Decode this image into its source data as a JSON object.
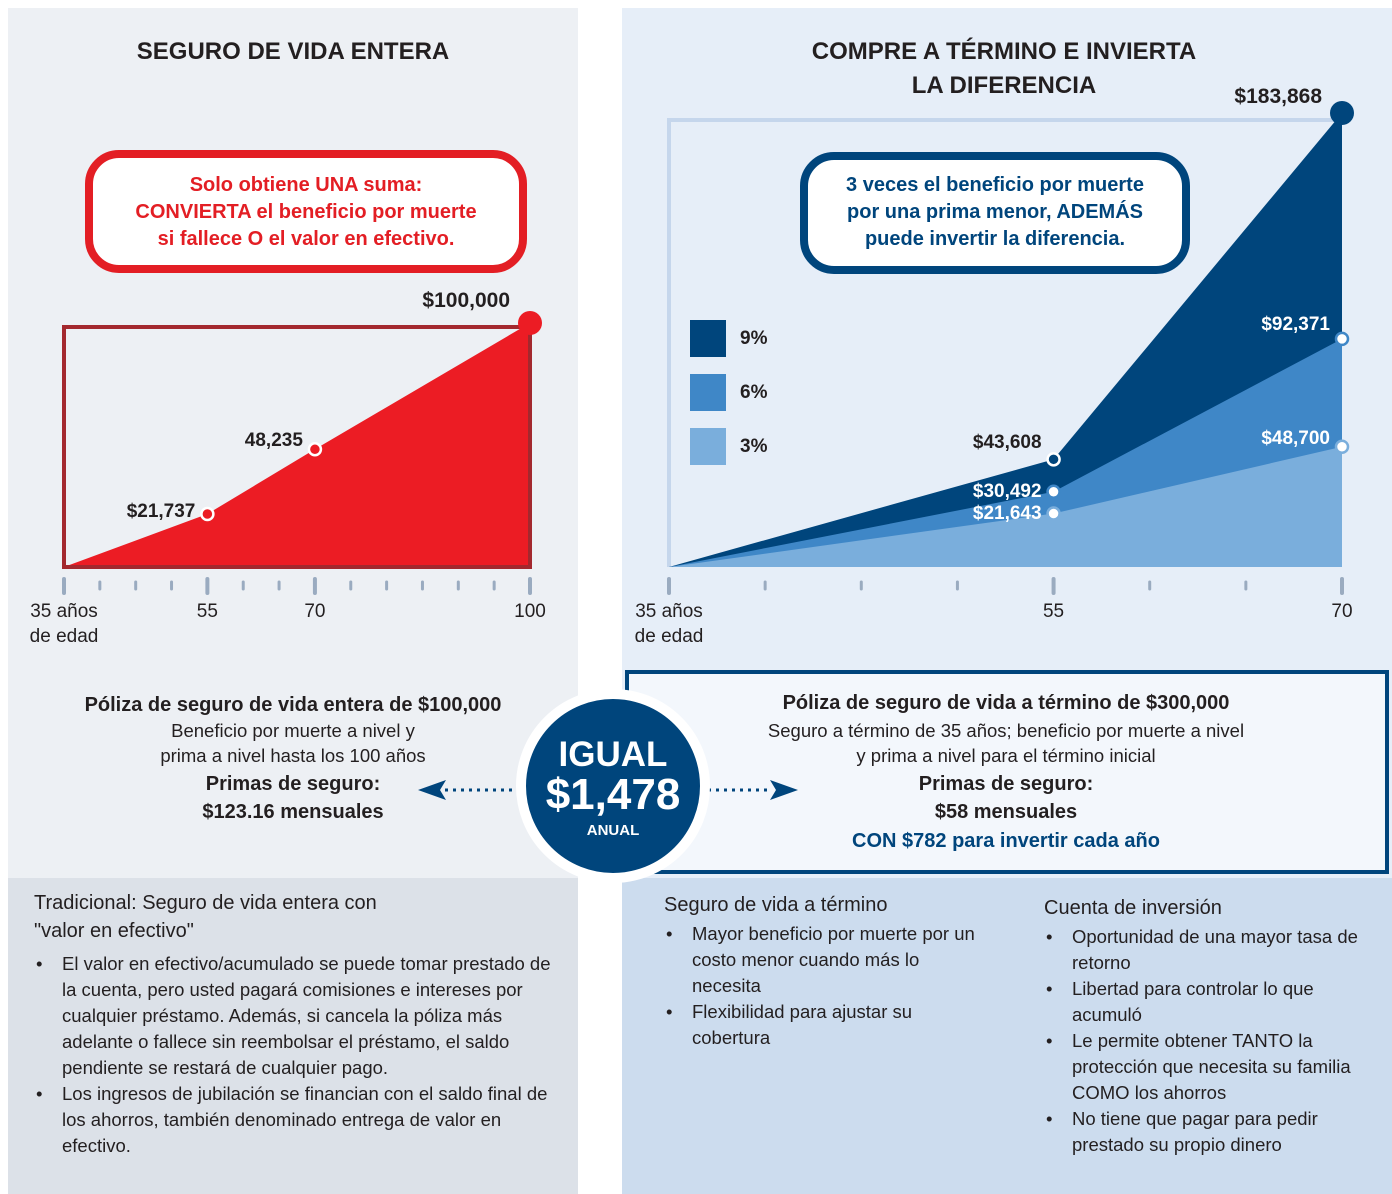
{
  "chart_data": [
    {
      "type": "area",
      "title": "SEGURO DE VIDA ENTERA",
      "annotation": [
        "Solo obtiene UNA suma:",
        "CONVIERTA el beneficio por muerte",
        "si fallece O el valor en efectivo."
      ],
      "x": [
        35,
        55,
        70,
        100
      ],
      "color": "#ec1c24",
      "values": [
        0,
        21737,
        48235,
        100000
      ],
      "value_labels": [
        null,
        "$21,737",
        "48,235",
        "$100,000"
      ],
      "xlim": [
        35,
        100
      ],
      "xticks": [
        {
          "value": 35,
          "label": "35 años de edad"
        },
        55,
        70,
        100
      ],
      "minor_xticks": [
        40,
        45,
        50,
        60,
        65,
        75,
        80,
        85,
        90,
        95
      ],
      "ylim": [
        0,
        100000
      ]
    },
    {
      "type": "area",
      "title": [
        "COMPRE A TÉRMINO E INVIERTA",
        "LA DIFERENCIA"
      ],
      "annotation": [
        "3 veces el beneficio por muerte",
        "por una prima menor, ADEMÁS",
        "puede invertir la diferencia."
      ],
      "x": [
        35,
        55,
        70
      ],
      "series": [
        {
          "name": "9%",
          "color": "#00457c",
          "values": [
            0,
            43608,
            183868
          ],
          "value_labels": [
            null,
            "$43,608",
            "$183,868"
          ]
        },
        {
          "name": "6%",
          "color": "#3f87c7",
          "values": [
            0,
            30492,
            92371
          ],
          "value_labels": [
            null,
            "$30,492",
            "$92,371"
          ]
        },
        {
          "name": "3%",
          "color": "#7aaedc",
          "values": [
            0,
            21643,
            48700
          ],
          "value_labels": [
            null,
            "$21,643",
            "$48,700"
          ]
        }
      ],
      "xlim": [
        35,
        70
      ],
      "xticks": [
        {
          "value": 35,
          "label": "35 años de edad"
        },
        55,
        70
      ],
      "minor_xticks": [
        40,
        45,
        50,
        60,
        65
      ],
      "ylim": [
        0,
        183868
      ]
    }
  ],
  "left_policy": {
    "title": "Póliza de seguro de vida entera de $100,000",
    "lines": [
      "Beneficio por muerte a nivel y",
      "prima a nivel hasta los 100 años"
    ],
    "premium_label": "Primas de seguro:",
    "premium": "$123.16 mensuales"
  },
  "right_policy": {
    "title": "Póliza de seguro de vida a término de $300,000",
    "lines": [
      "Seguro a término de 35 años; beneficio por muerte a nivel",
      "y prima a nivel para el término inicial"
    ],
    "premium_label": "Primas de seguro:",
    "premium": "$58 mensuales",
    "invest": "CON $782 para invertir cada año"
  },
  "center": {
    "top": "IGUAL",
    "amount": "$1,478",
    "bottom": "ANUAL"
  },
  "traditional": {
    "heading": [
      "Tradicional: Seguro de vida entera con",
      "\"valor en efectivo\""
    ],
    "bullets": [
      "El valor en efectivo/acumulado se puede tomar prestado de la cuenta, pero usted pagará comisiones e intereses por cualquier préstamo. Además, si cancela la póliza más adelante o fallece sin reembolsar el préstamo, el saldo pendiente se restará de cualquier pago.",
      "Los ingresos de jubilación se financian con el saldo final de los ahorros, también denominado entrega de valor en efectivo."
    ]
  },
  "term": {
    "heading": "Seguro de vida a término",
    "bullets": [
      "Mayor beneficio por muerte por un costo menor cuando más lo necesita",
      "Flexibilidad para ajustar su cobertura"
    ]
  },
  "investment": {
    "heading": "Cuenta de inversión",
    "bullets": [
      "Oportunidad de una mayor tasa de retorno",
      "Libertad para controlar lo que acumuló",
      "Le permite obtener TANTO la protección que necesita su familia COMO los ahorros",
      "No tiene que pagar para pedir prestado su propio dinero"
    ]
  }
}
